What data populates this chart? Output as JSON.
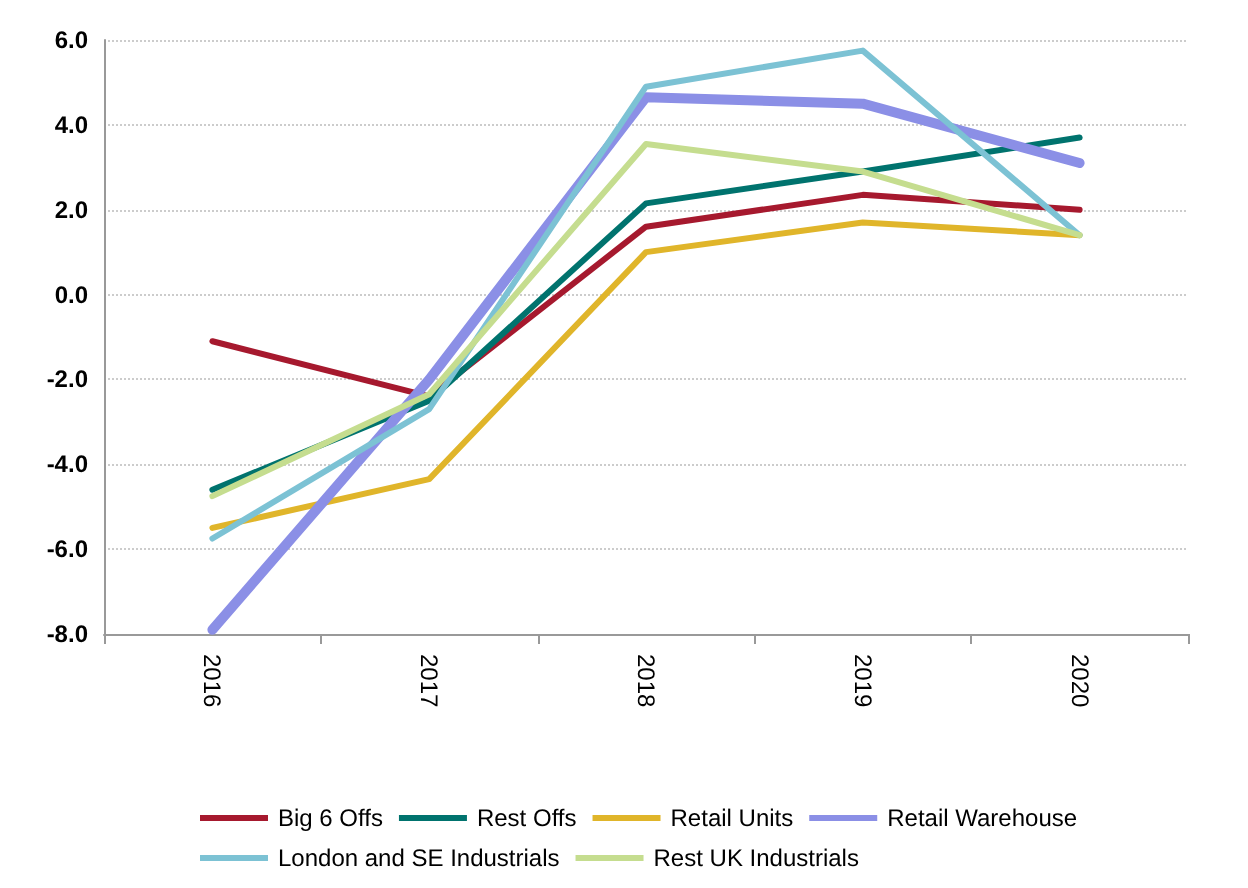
{
  "chart_data": {
    "type": "line",
    "categories": [
      "2016",
      "2017",
      "2018",
      "2019",
      "2020"
    ],
    "series": [
      {
        "name": "Big 6 Offs",
        "color": "#a6192e",
        "values": [
          -1.1,
          -2.4,
          1.6,
          2.35,
          2.0
        ]
      },
      {
        "name": "Rest Offs",
        "color": "#00736e",
        "values": [
          -4.6,
          -2.5,
          2.15,
          2.9,
          3.7
        ]
      },
      {
        "name": "Retail Units",
        "color": "#e0b52a",
        "values": [
          -5.5,
          -4.35,
          1.0,
          1.7,
          1.4
        ]
      },
      {
        "name": "Retail Warehouse",
        "color": "#8b8fe6",
        "values": [
          -7.9,
          -2.0,
          4.65,
          4.5,
          3.1
        ]
      },
      {
        "name": "London and SE Industrials",
        "color": "#7cc2d4",
        "values": [
          -5.75,
          -2.7,
          4.9,
          5.75,
          1.4
        ]
      },
      {
        "name": "Rest UK Industrials",
        "color": "#c5dd8f",
        "values": [
          -4.75,
          -2.35,
          3.55,
          2.9,
          1.4
        ]
      }
    ],
    "ylim": [
      -8,
      6
    ],
    "yticks": [
      {
        "value": -8,
        "label": "-8.0"
      },
      {
        "value": -6,
        "label": "-6.0"
      },
      {
        "value": -4,
        "label": "-4.0"
      },
      {
        "value": -2,
        "label": "-2.0"
      },
      {
        "value": 0,
        "label": "0.0"
      },
      {
        "value": 2,
        "label": "2.0"
      },
      {
        "value": 4,
        "label": "4.0"
      },
      {
        "value": 6,
        "label": "6.0"
      }
    ],
    "grid": "y",
    "legend": "bottom",
    "marker": "none",
    "line_style": "solid"
  }
}
